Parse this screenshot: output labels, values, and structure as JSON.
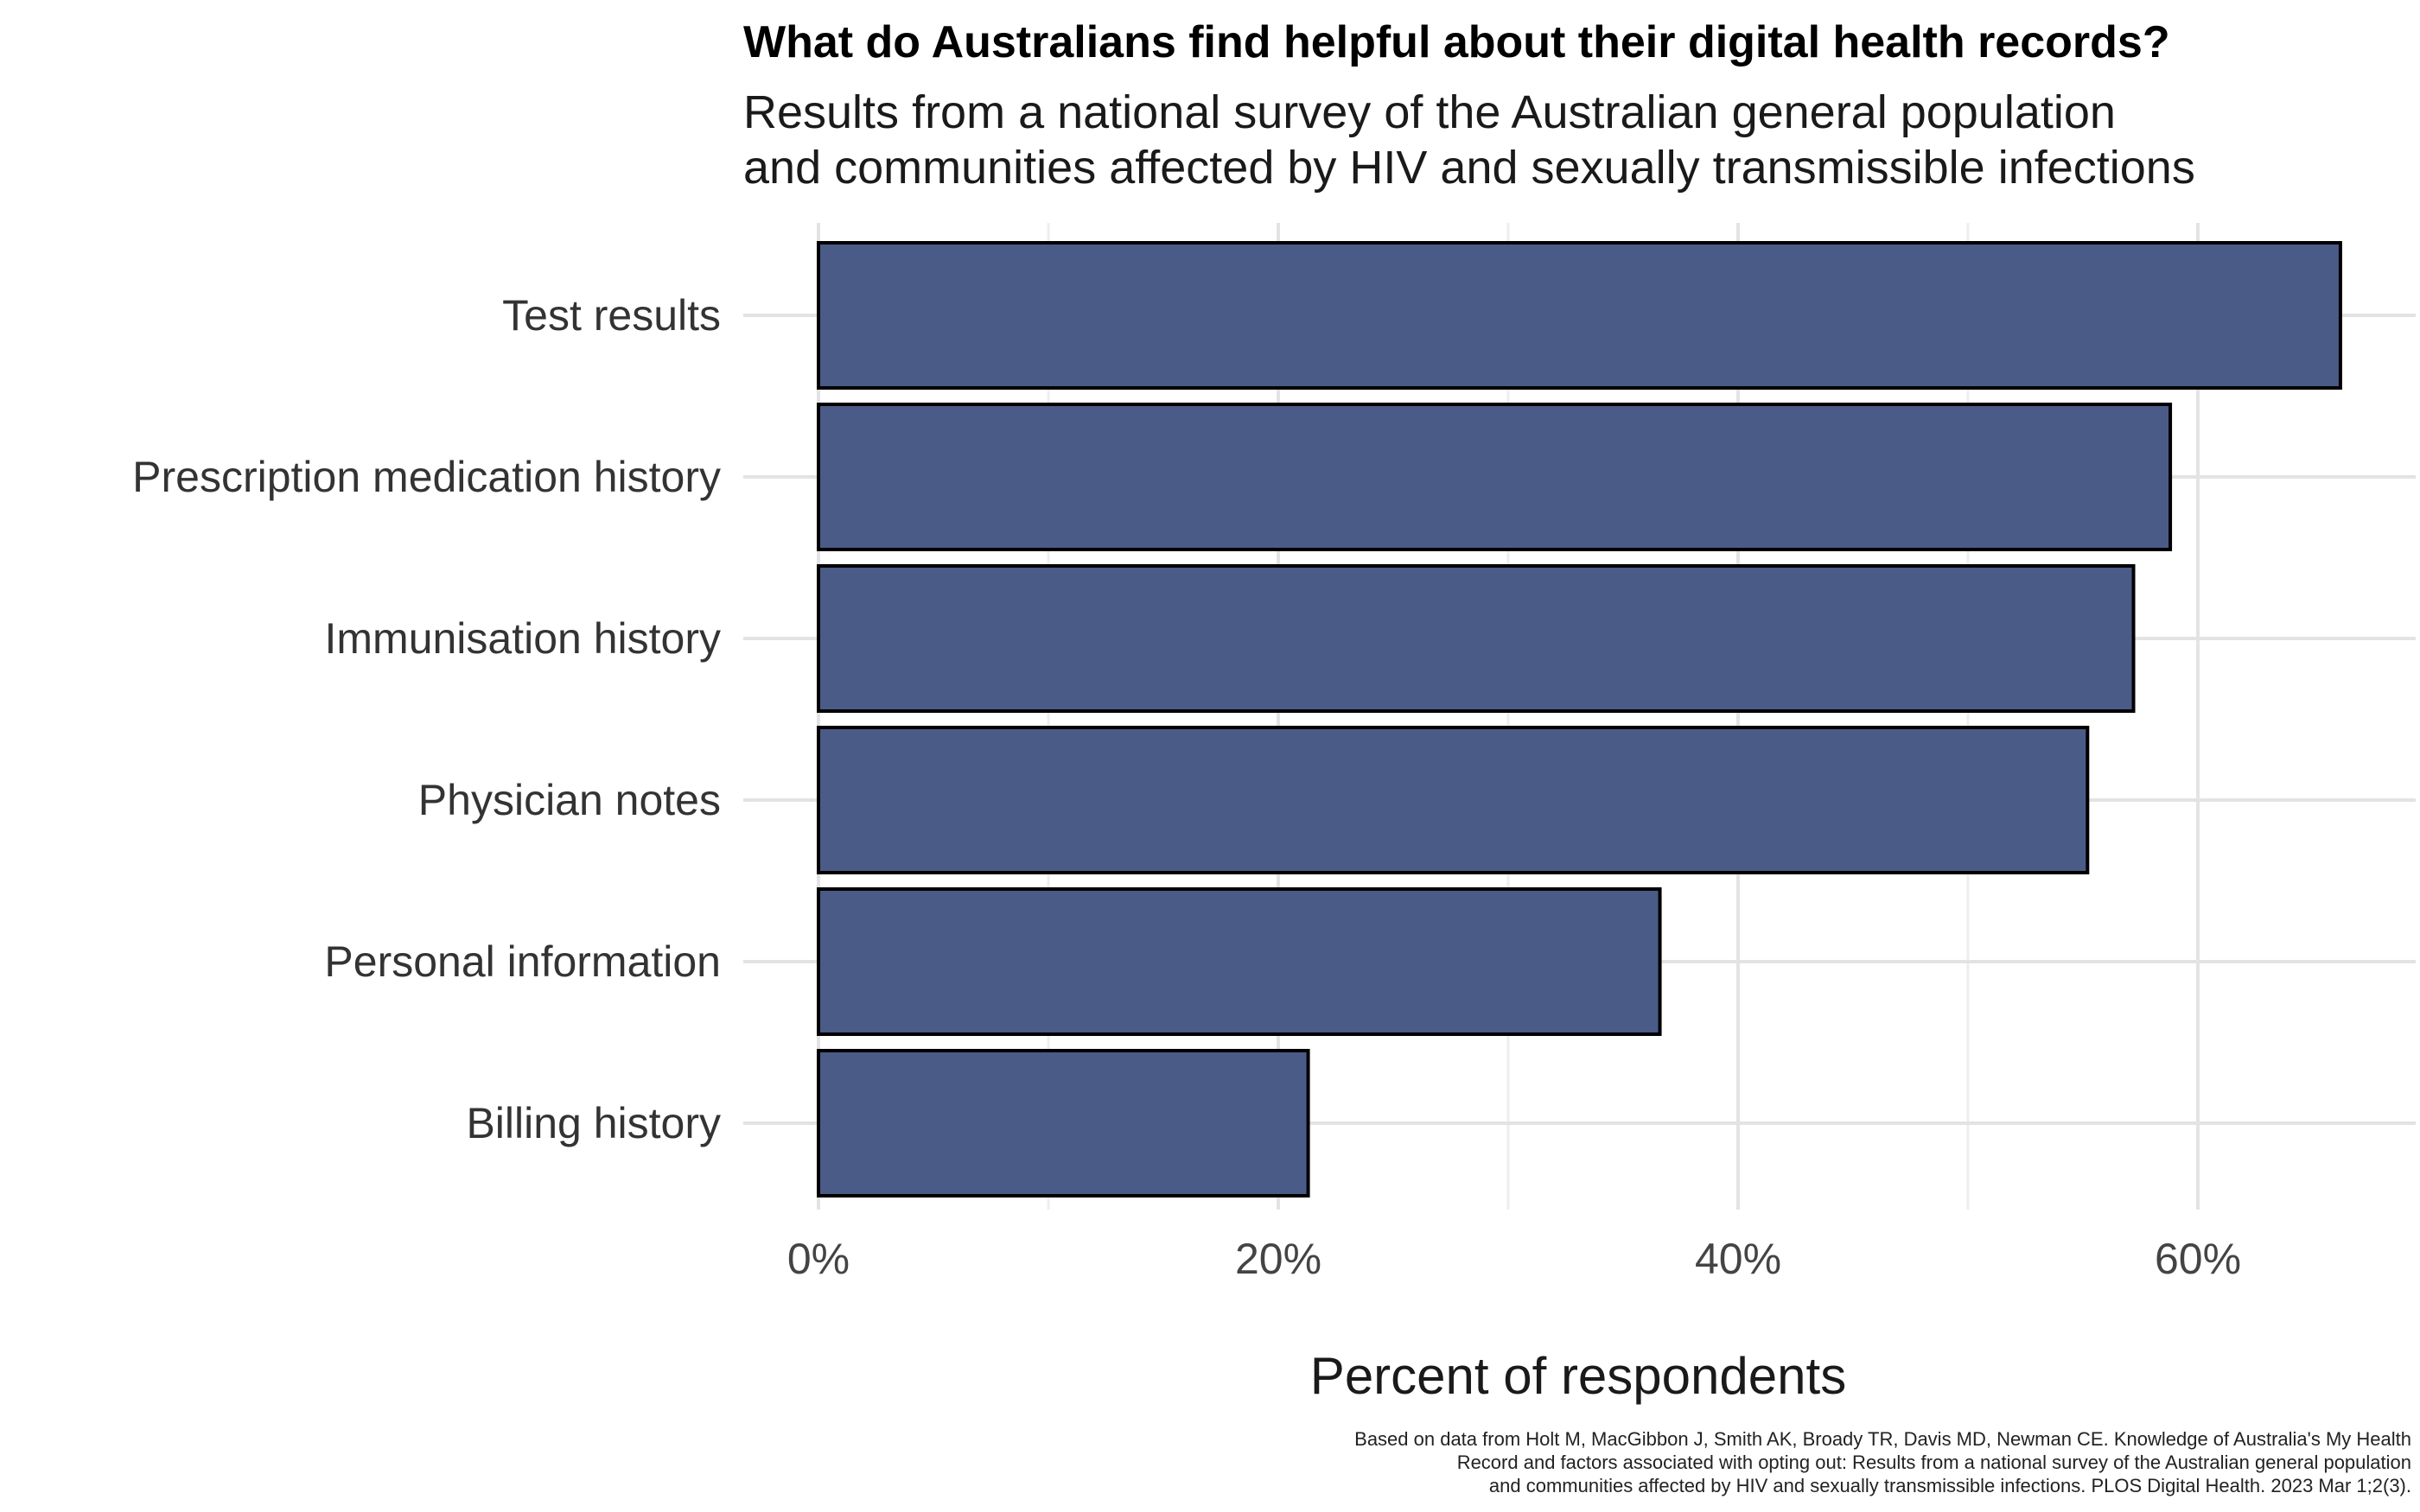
{
  "chart_data": {
    "type": "bar",
    "orientation": "horizontal",
    "title": "What do Australians find helpful about their digital health records?",
    "subtitle": [
      "Results from a  national survey of the Australian general population",
      "and communities affected by HIV and sexually transmissible infections"
    ],
    "categories": [
      "Test results",
      "Prescription medication history",
      "Immunisation history",
      "Physician notes",
      "Personal information",
      "Billing history"
    ],
    "values": [
      66.2,
      58.8,
      57.2,
      55.2,
      36.6,
      21.3
    ],
    "xlabel": "Percent of respondents",
    "ylabel": "",
    "xlim": [
      0,
      69.5
    ],
    "x_ticks": [
      0,
      20,
      40,
      60
    ],
    "x_tick_labels": [
      "0%",
      "20%",
      "40%",
      "60%"
    ],
    "grid": true,
    "legend": "none",
    "bar_color": "#4b5b88",
    "bar_outline_color": "#000000",
    "caption": [
      "Based on data from Holt M, MacGibbon J, Smith AK, Broady TR, Davis MD, Newman CE. Knowledge of Australia's My Health",
      "Record and factors associated with opting out: Results from a national survey of the Australian general population",
      "and communities affected by HIV and sexually transmissible infections. PLOS Digital Health. 2023 Mar 1;2(3)."
    ]
  }
}
